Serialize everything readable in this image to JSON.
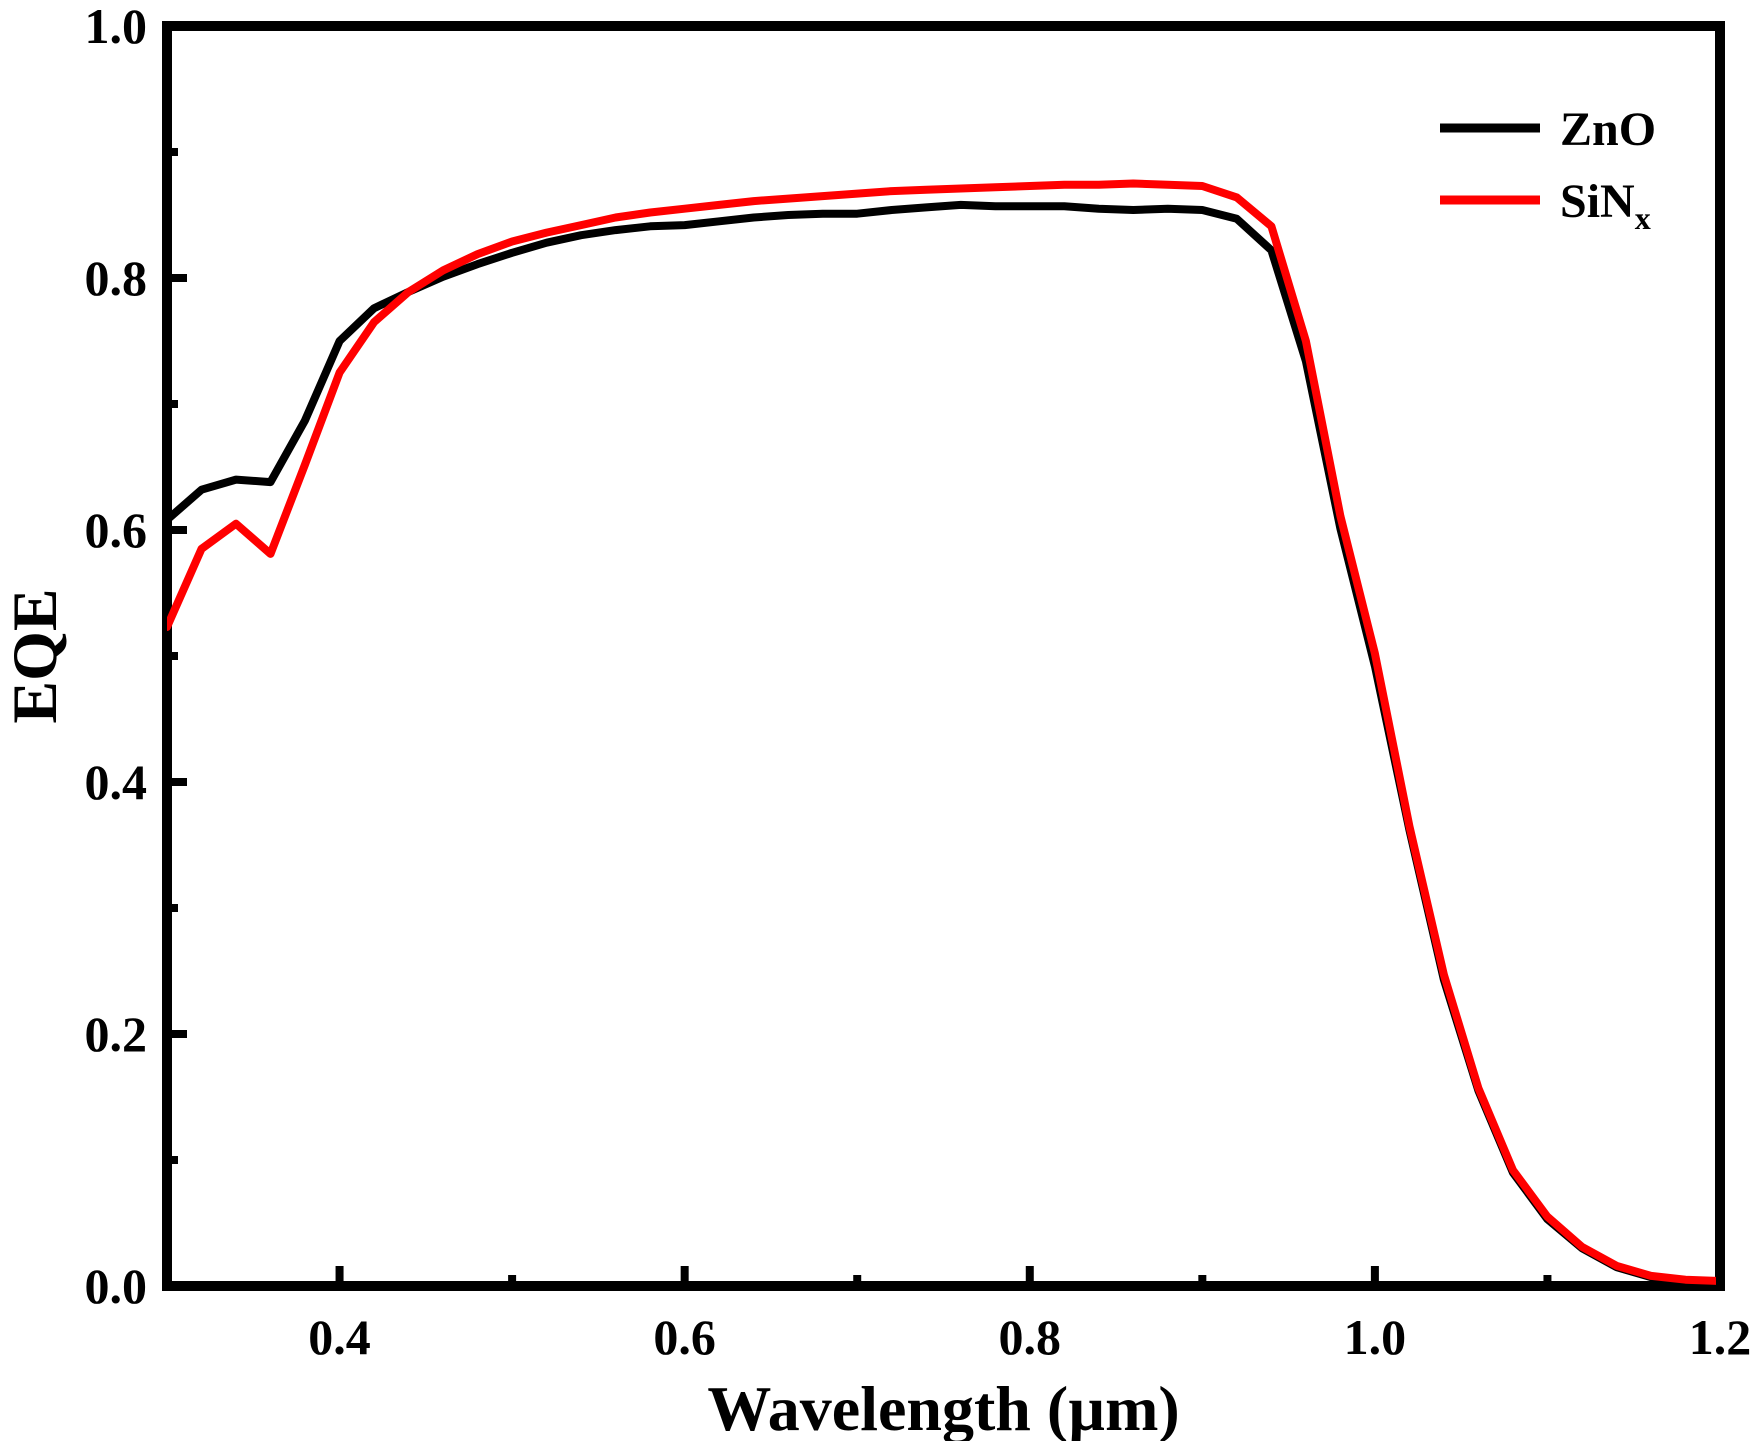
{
  "chart_data": {
    "type": "line",
    "title": "",
    "xlabel": "Wavelength (µm)",
    "ylabel": "EQE",
    "xlim": [
      0.3,
      1.2
    ],
    "ylim": [
      0.0,
      1.0
    ],
    "x_ticks": [
      "0.4",
      "0.6",
      "0.8",
      "1.0",
      "1.2"
    ],
    "x_tick_values": [
      0.4,
      0.6,
      0.8,
      1.0,
      1.2
    ],
    "y_ticks": [
      "0.0",
      "0.2",
      "0.4",
      "0.6",
      "0.8",
      "1.0"
    ],
    "y_tick_values": [
      0.0,
      0.2,
      0.4,
      0.6,
      0.8,
      1.0
    ],
    "grid": false,
    "legend_position": "top-right",
    "x": [
      0.3,
      0.32,
      0.34,
      0.36,
      0.38,
      0.4,
      0.42,
      0.44,
      0.46,
      0.48,
      0.5,
      0.52,
      0.54,
      0.56,
      0.58,
      0.6,
      0.62,
      0.64,
      0.66,
      0.68,
      0.7,
      0.72,
      0.74,
      0.76,
      0.78,
      0.8,
      0.82,
      0.84,
      0.86,
      0.88,
      0.9,
      0.92,
      0.94,
      0.96,
      0.98,
      1.0,
      1.02,
      1.04,
      1.06,
      1.08,
      1.1,
      1.12,
      1.14,
      1.16,
      1.18,
      1.2
    ],
    "series": [
      {
        "name": "ZnO",
        "color": "#000000",
        "values": [
          0.608,
          0.632,
          0.64,
          0.638,
          0.687,
          0.75,
          0.776,
          0.789,
          0.801,
          0.811,
          0.82,
          0.828,
          0.834,
          0.838,
          0.841,
          0.842,
          0.845,
          0.848,
          0.85,
          0.851,
          0.851,
          0.854,
          0.856,
          0.858,
          0.857,
          0.857,
          0.857,
          0.855,
          0.854,
          0.855,
          0.854,
          0.847,
          0.822,
          0.734,
          0.601,
          0.492,
          0.362,
          0.243,
          0.155,
          0.09,
          0.053,
          0.03,
          0.015,
          0.007,
          0.004,
          0.003
        ]
      },
      {
        "name": "SiN",
        "name_subscript": "x",
        "color": "#ff0000",
        "values": [
          0.523,
          0.585,
          0.605,
          0.581,
          0.652,
          0.725,
          0.765,
          0.789,
          0.806,
          0.819,
          0.829,
          0.836,
          0.842,
          0.848,
          0.852,
          0.855,
          0.858,
          0.861,
          0.863,
          0.865,
          0.867,
          0.869,
          0.87,
          0.871,
          0.872,
          0.873,
          0.874,
          0.874,
          0.875,
          0.874,
          0.873,
          0.864,
          0.841,
          0.75,
          0.611,
          0.502,
          0.365,
          0.247,
          0.157,
          0.092,
          0.055,
          0.031,
          0.016,
          0.008,
          0.005,
          0.004
        ]
      }
    ]
  }
}
